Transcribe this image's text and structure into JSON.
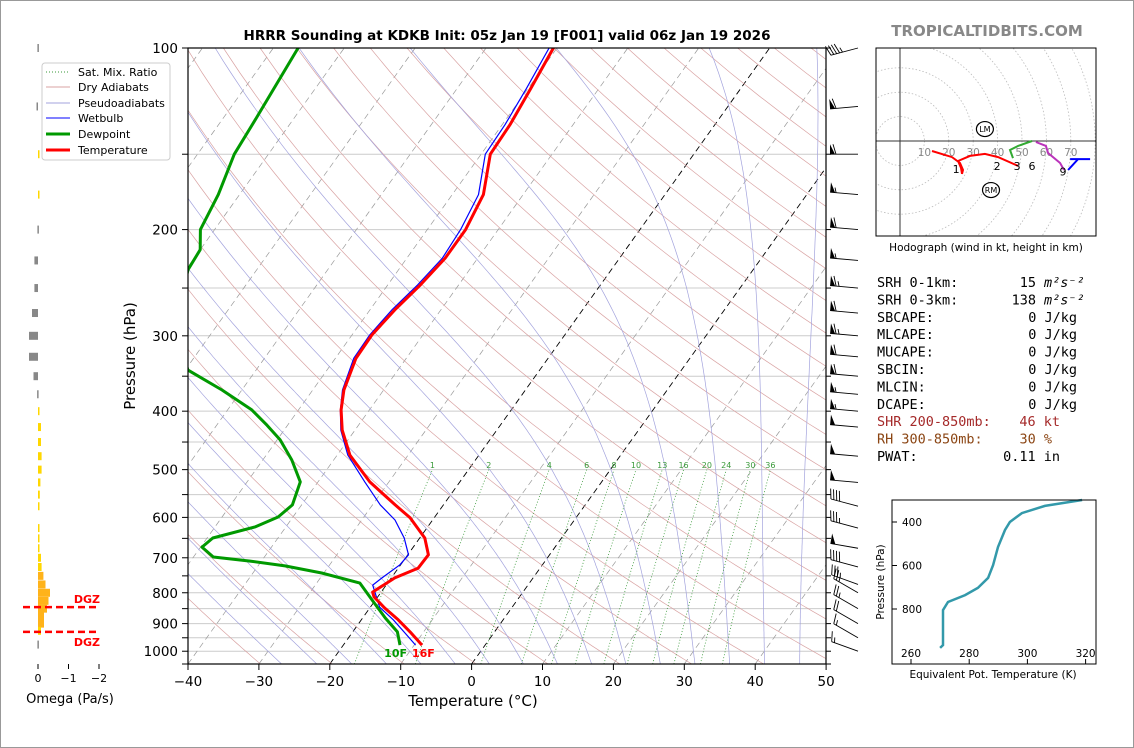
{
  "title": "HRRR Sounding at KDKB Init: 05z Jan 19 [F001] valid 06z Jan 19 2026",
  "watermark": "TROPICALTIDBITS.COM",
  "colors": {
    "temperature": "#ff0000",
    "dewpoint": "#009900",
    "wetbulb": "#0000ff",
    "dry_adiabat": "#d9a3a3",
    "pseudoadiabat": "#a3a3dd",
    "mixing_ratio": "#3a9a3a",
    "thetae": "#3399aa",
    "dgz": "#ff0000"
  },
  "legend": [
    "Sat. Mix. Ratio",
    "Dry Adiabats",
    "Pseudoadiabats",
    "Wetbulb",
    "Dewpoint",
    "Temperature"
  ],
  "surface_labels": {
    "dewpoint": "10F",
    "temperature": "16F"
  },
  "chart_data": [
    {
      "type": "line",
      "subtype": "skew-t log-p",
      "title": "HRRR Sounding at KDKB Init: 05z Jan 19 [F001] valid 06z Jan 19 2026",
      "xlabel": "Temperature (°C)",
      "ylabel": "Pressure (hPa)",
      "xlim": [
        -40,
        50
      ],
      "ylim": [
        1050,
        100
      ],
      "yscale": "log",
      "grid": true,
      "legend_placement": "top-left",
      "xticks": [
        "−40",
        "−30",
        "−20",
        "−10",
        "0",
        "10",
        "20",
        "30",
        "40",
        "50"
      ],
      "yticks": [
        "100",
        "200",
        "300",
        "400",
        "500",
        "600",
        "700",
        "800",
        "900",
        "1000"
      ],
      "mixing_ratio_labels": [
        "1",
        "2",
        "4",
        "6",
        "8",
        "10",
        "13",
        "16",
        "20",
        "24",
        "30",
        "36"
      ],
      "series": [
        {
          "name": "Temperature",
          "points": [
            [
              977,
              -8.9
            ],
            [
              929,
              -11.9
            ],
            [
              887,
              -14.8
            ],
            [
              848,
              -17.9
            ],
            [
              813,
              -20.5
            ],
            [
              798,
              -21.2
            ],
            [
              756,
              -19.5
            ],
            [
              728,
              -17.2
            ],
            [
              692,
              -17.1
            ],
            [
              649,
              -19.3
            ],
            [
              601,
              -23.4
            ],
            [
              572,
              -26.8
            ],
            [
              524,
              -32.7
            ],
            [
              473,
              -38.2
            ],
            [
              430,
              -41.8
            ],
            [
              398,
              -44.0
            ],
            [
              369,
              -45.6
            ],
            [
              327,
              -47.1
            ],
            [
              299,
              -47.2
            ],
            [
              272,
              -46.5
            ],
            [
              247,
              -45.4
            ],
            [
              223,
              -44.6
            ],
            [
              200,
              -44.6
            ],
            [
              175,
              -45.6
            ],
            [
              150,
              -48.7
            ],
            [
              134,
              -48.9
            ],
            [
              117,
              -49.6
            ],
            [
              100,
              -50.5
            ]
          ]
        },
        {
          "name": "Dewpoint",
          "points": [
            [
              977,
              -12.0
            ],
            [
              929,
              -13.7
            ],
            [
              881,
              -16.8
            ],
            [
              822,
              -20.5
            ],
            [
              771,
              -23.9
            ],
            [
              742,
              -30.3
            ],
            [
              722,
              -36.2
            ],
            [
              709,
              -41.6
            ],
            [
              698,
              -47.2
            ],
            [
              672,
              -49.8
            ],
            [
              649,
              -49.2
            ],
            [
              622,
              -44.3
            ],
            [
              599,
              -42.1
            ],
            [
              572,
              -41.3
            ],
            [
              524,
              -42.5
            ],
            [
              482,
              -45.9
            ],
            [
              446,
              -49.6
            ],
            [
              422,
              -52.9
            ],
            [
              398,
              -56.6
            ],
            [
              369,
              -62.8
            ],
            [
              342,
              -69.6
            ],
            [
              290,
              -76
            ],
            [
              233,
              -79.7
            ],
            [
              216,
              -80.0
            ],
            [
              200,
              -82.0
            ],
            [
              175,
              -83.0
            ],
            [
              150,
              -84.8
            ],
            [
              132,
              -85.3
            ],
            [
              100,
              -86.5
            ]
          ]
        },
        {
          "name": "Wetbulb",
          "points": [
            [
              977,
              -9.8
            ],
            [
              933,
              -12.5
            ],
            [
              887,
              -15.5
            ],
            [
              845,
              -18.7
            ],
            [
              777,
              -21.9
            ],
            [
              756,
              -21.3
            ],
            [
              719,
              -20.1
            ],
            [
              692,
              -19.9
            ],
            [
              649,
              -22.2
            ],
            [
              606,
              -25.3
            ],
            [
              572,
              -28.9
            ],
            [
              524,
              -33.4
            ],
            [
              473,
              -38.5
            ],
            [
              430,
              -42.0
            ],
            [
              398,
              -44.1
            ],
            [
              369,
              -45.8
            ],
            [
              327,
              -47.4
            ],
            [
              299,
              -47.5
            ],
            [
              272,
              -46.9
            ],
            [
              247,
              -45.8
            ],
            [
              223,
              -45.0
            ],
            [
              200,
              -45.3
            ],
            [
              175,
              -46.3
            ],
            [
              150,
              -49.4
            ],
            [
              134,
              -49.6
            ],
            [
              117,
              -50.2
            ],
            [
              100,
              -51.1
            ]
          ]
        }
      ],
      "wind_barbs": [
        [
          100,
          45,
          255
        ],
        [
          125,
          60,
          265
        ],
        [
          150,
          60,
          270
        ],
        [
          175,
          55,
          275
        ],
        [
          200,
          60,
          275
        ],
        [
          225,
          55,
          275
        ],
        [
          250,
          65,
          275
        ],
        [
          275,
          60,
          275
        ],
        [
          300,
          65,
          275
        ],
        [
          325,
          60,
          275
        ],
        [
          350,
          60,
          275
        ],
        [
          375,
          55,
          275
        ],
        [
          400,
          55,
          275
        ],
        [
          425,
          50,
          275
        ],
        [
          475,
          50,
          275
        ],
        [
          525,
          50,
          275
        ],
        [
          575,
          40,
          285
        ],
        [
          625,
          35,
          285
        ],
        [
          675,
          50,
          280
        ],
        [
          725,
          40,
          285
        ],
        [
          775,
          35,
          290
        ],
        [
          800,
          25,
          300
        ],
        [
          850,
          25,
          300
        ],
        [
          900,
          20,
          300
        ],
        [
          950,
          15,
          300
        ],
        [
          1000,
          15,
          290
        ]
      ]
    },
    {
      "type": "bar",
      "subtype": "omega profile",
      "xlabel": "Omega (Pa/s)",
      "xticks": [
        "0",
        "−1",
        "−2"
      ],
      "dgz_label": "DGZ",
      "dgz_bounds_hpa": [
        845,
        929
      ],
      "levels": [
        [
          100,
          0.02
        ],
        [
          125,
          0.05
        ],
        [
          150,
          -0.02
        ],
        [
          175,
          -0.02
        ],
        [
          200,
          0.02
        ],
        [
          225,
          0.12
        ],
        [
          250,
          0.12
        ],
        [
          275,
          0.2
        ],
        [
          300,
          0.3
        ],
        [
          325,
          0.3
        ],
        [
          350,
          0.15
        ],
        [
          375,
          0.03
        ],
        [
          400,
          -0.05
        ],
        [
          425,
          -0.1
        ],
        [
          450,
          -0.1
        ],
        [
          475,
          -0.12
        ],
        [
          500,
          -0.12
        ],
        [
          525,
          -0.08
        ],
        [
          550,
          -0.06
        ],
        [
          575,
          -0.02
        ],
        [
          625,
          -0.02
        ],
        [
          650,
          -0.03
        ],
        [
          675,
          -0.05
        ],
        [
          700,
          -0.1
        ],
        [
          725,
          -0.12
        ],
        [
          750,
          -0.18
        ],
        [
          775,
          -0.25
        ],
        [
          800,
          -0.4
        ],
        [
          825,
          -0.35
        ],
        [
          850,
          -0.3
        ],
        [
          875,
          -0.2
        ],
        [
          900,
          -0.2
        ],
        [
          925,
          -0.1
        ],
        [
          975,
          0.02
        ]
      ]
    },
    {
      "type": "line",
      "subtype": "hodograph",
      "xlabel": "Hodograph (wind in kt, height in km)",
      "ring_labels": [
        "10",
        "20",
        "30",
        "40",
        "50",
        "60",
        "70"
      ],
      "segments": [
        {
          "color": "#ff0000",
          "points": [
            [
              13.1,
              -4.1
            ],
            [
              21.3,
              -6.6
            ],
            [
              24.6,
              -9.0
            ],
            [
              25.8,
              -11.9
            ],
            [
              25.4,
              -13.5
            ],
            [
              25.0,
              -11.0
            ],
            [
              23.8,
              -8.2
            ],
            [
              28.7,
              -6.1
            ],
            [
              34.8,
              -5.3
            ],
            [
              40.2,
              -6.6
            ],
            [
              48.4,
              -10.2
            ]
          ]
        },
        {
          "color": "#33aa33",
          "points": [
            [
              46.3,
              -7.0
            ],
            [
              45.1,
              -3.7
            ],
            [
              48.4,
              -2.0
            ],
            [
              54.1,
              0
            ]
          ]
        },
        {
          "color": "#bb33bb",
          "points": [
            [
              55.7,
              -0.4
            ],
            [
              59.8,
              -2.0
            ],
            [
              60.7,
              -4.9
            ],
            [
              65.6,
              -9.0
            ],
            [
              67.2,
              -11.9
            ]
          ]
        },
        {
          "color": "#0000ff",
          "points": [
            [
              68.9,
              -11.9
            ],
            [
              73,
              -7.4
            ],
            [
              77.9,
              -7.4
            ],
            [
              69.7,
              -7.4
            ]
          ]
        }
      ],
      "height_labels": [
        {
          "text": "1",
          "u": 23,
          "v": -11.5
        },
        {
          "text": "2",
          "u": 39.8,
          "v": -7
        },
        {
          "text": "3",
          "u": 48,
          "v": -8.5
        },
        {
          "text": "6",
          "u": 54.1,
          "v": -0.4
        },
        {
          "text": "9",
          "u": 66.8,
          "v": -12.5
        }
      ],
      "storm_motion": [
        {
          "text": "LM",
          "u": 34.8,
          "v": 4.9
        },
        {
          "text": "RM",
          "u": 37.3,
          "v": -20.1
        }
      ]
    },
    {
      "type": "line",
      "subtype": "theta-e profile",
      "xlabel": "Equivalent Pot. Temperature (K)",
      "ylabel": "Pressure (hPa)",
      "xticks": [
        "260",
        "280",
        "300",
        "320"
      ],
      "yticks": [
        "400",
        "600",
        "800"
      ],
      "points": [
        [
          979,
          270.0
        ],
        [
          966,
          271.0
        ],
        [
          805,
          271.0
        ],
        [
          768,
          272.7
        ],
        [
          736,
          278.6
        ],
        [
          703,
          283.0
        ],
        [
          657,
          286.5
        ],
        [
          598,
          288.2
        ],
        [
          515,
          289.9
        ],
        [
          437,
          292.3
        ],
        [
          400,
          294.0
        ],
        [
          359,
          298.1
        ],
        [
          326,
          306.0
        ],
        [
          299,
          318.8
        ]
      ]
    }
  ],
  "stats": [
    {
      "label": "SRH 0-1km:",
      "value": "15",
      "unit": "m²s⁻²"
    },
    {
      "label": "SRH 0-3km:",
      "value": "138",
      "unit": "m²s⁻²"
    },
    {
      "label": "SBCAPE:",
      "value": "0 J/kg"
    },
    {
      "label": "MLCAPE:",
      "value": "0 J/kg"
    },
    {
      "label": "MUCAPE:",
      "value": "0 J/kg"
    },
    {
      "label": "SBCIN:",
      "value": "0 J/kg"
    },
    {
      "label": "MLCIN:",
      "value": "0 J/kg"
    },
    {
      "label": "DCAPE:",
      "value": "0 J/kg"
    },
    {
      "label": "SHR 200-850mb:",
      "value": "46 kt",
      "color": "#a52a2a"
    },
    {
      "label": "RH 300-850mb:",
      "value": "30 %",
      "color": "#8b4513"
    },
    {
      "label": "PWAT:",
      "value": "0.11 in"
    }
  ]
}
